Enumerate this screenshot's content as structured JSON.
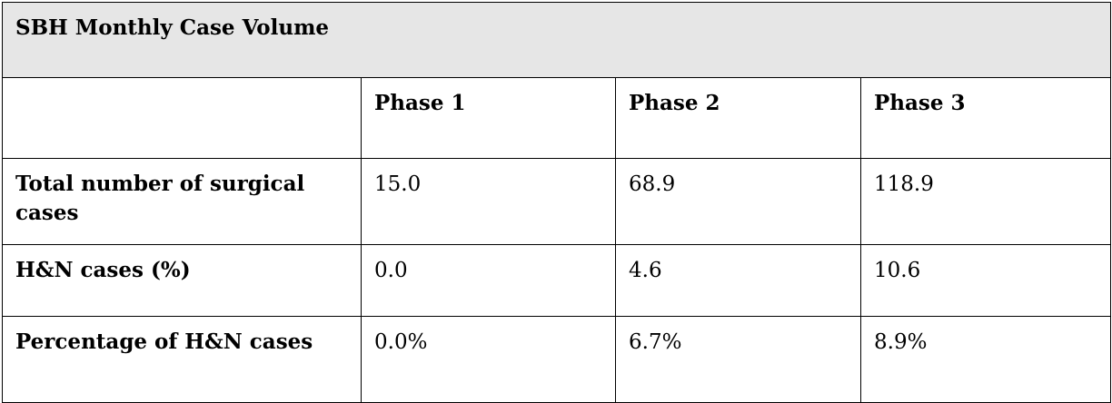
{
  "table": {
    "title": "SBH Monthly Case Volume",
    "columns": [
      "",
      "Phase 1",
      "Phase 2",
      "Phase 3"
    ],
    "rows": [
      {
        "label": "Total number of surgical cases",
        "values": [
          "15.0",
          "68.9",
          "118.9"
        ]
      },
      {
        "label": "H&N cases (%)",
        "values": [
          "0.0",
          "4.6",
          "10.6"
        ]
      },
      {
        "label": "Percentage of H&N cases",
        "values": [
          "0.0%",
          "6.7%",
          "8.9%"
        ]
      }
    ]
  }
}
